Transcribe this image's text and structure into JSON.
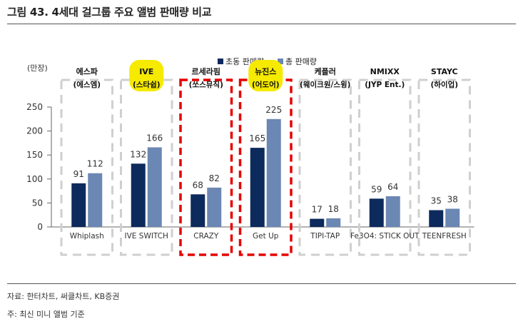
{
  "title": "그림 43. 4세대 걸그룹 주요 앨범 판매량 비교",
  "source": "자료: 한터차트, 써클차트, KB증권",
  "note": "주: 최신 미니 앨범 기준",
  "colors": {
    "first_week": "#0d2a5c",
    "total": "#6b87b3",
    "highlight": "#f5ea00",
    "red_box": "#e60000",
    "grey_box": "#cfcfcf",
    "axis_text": "#333333"
  },
  "chart_data": {
    "type": "bar",
    "unit_label": "(만장)",
    "ylim": [
      0,
      250
    ],
    "yticks": [
      0,
      50,
      100,
      150,
      200,
      250
    ],
    "categories": [
      "Whiplash",
      "IVE SWITCH",
      "CRAZY",
      "Get Up",
      "TIPI-TAP",
      "Fe3O4: STICK OUT",
      "TEENFRESH"
    ],
    "groups": [
      {
        "name": "에스파",
        "agency": "(에스엠)",
        "highlight": false,
        "box": "grey"
      },
      {
        "name": "IVE",
        "agency": "(스타쉽)",
        "highlight": true,
        "box": "grey"
      },
      {
        "name": "르세라핌",
        "agency": "(쏘스뮤직)",
        "highlight": false,
        "box": "red"
      },
      {
        "name": "뉴진스",
        "agency": "(어도어)",
        "highlight": true,
        "box": "red"
      },
      {
        "name": "케플러",
        "agency": "(웨이크원/스윙)",
        "highlight": false,
        "box": "grey"
      },
      {
        "name": "NMIXX",
        "agency": "(JYP Ent.)",
        "highlight": false,
        "box": "grey"
      },
      {
        "name": "STAYC",
        "agency": "(하이업)",
        "highlight": false,
        "box": "grey"
      }
    ],
    "series": [
      {
        "name": "초동 판매량",
        "color": "#0d2a5c",
        "values": [
          91,
          132,
          68,
          165,
          17,
          59,
          35
        ]
      },
      {
        "name": "총 판매량",
        "color": "#6b87b3",
        "values": [
          112,
          166,
          82,
          225,
          18,
          64,
          38
        ]
      }
    ],
    "legend_position": "top"
  }
}
